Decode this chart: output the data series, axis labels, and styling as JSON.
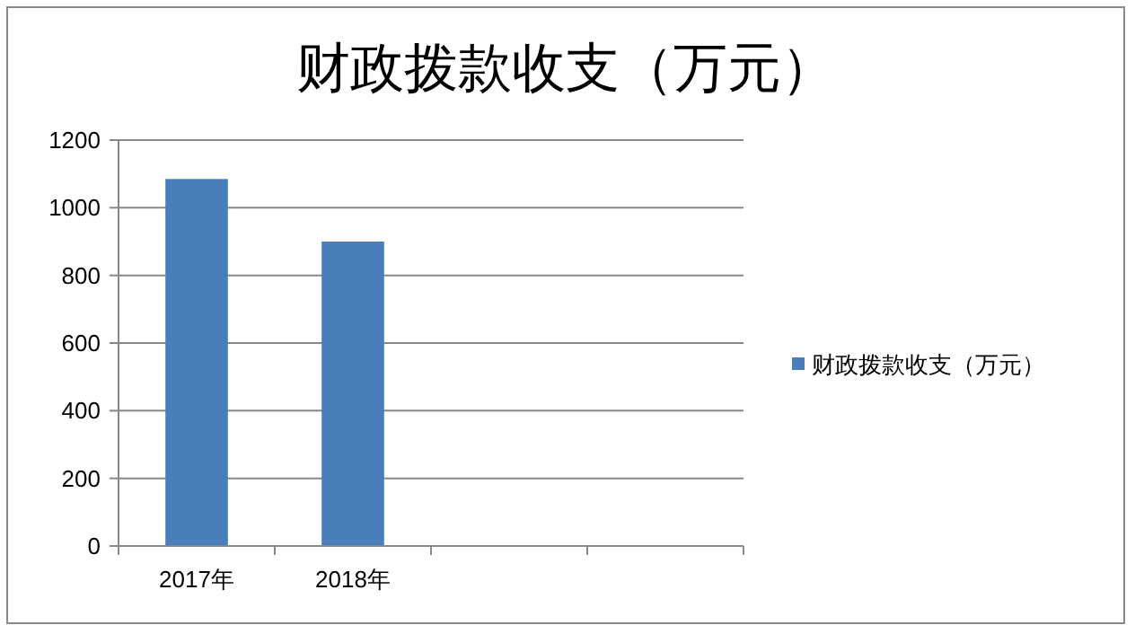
{
  "chart_data": {
    "type": "bar",
    "title": "财政拨款收支（万元）",
    "categories": [
      "2017年",
      "2018年",
      null,
      null
    ],
    "series": [
      {
        "name": "财政拨款收支（万元）",
        "color": "#4a7ebb",
        "values": [
          1085,
          900,
          null,
          null
        ]
      }
    ],
    "ylim": [
      0,
      1200
    ],
    "yticks": [
      0,
      200,
      400,
      600,
      800,
      1000,
      1200
    ],
    "grid": "y",
    "legend": "right"
  }
}
